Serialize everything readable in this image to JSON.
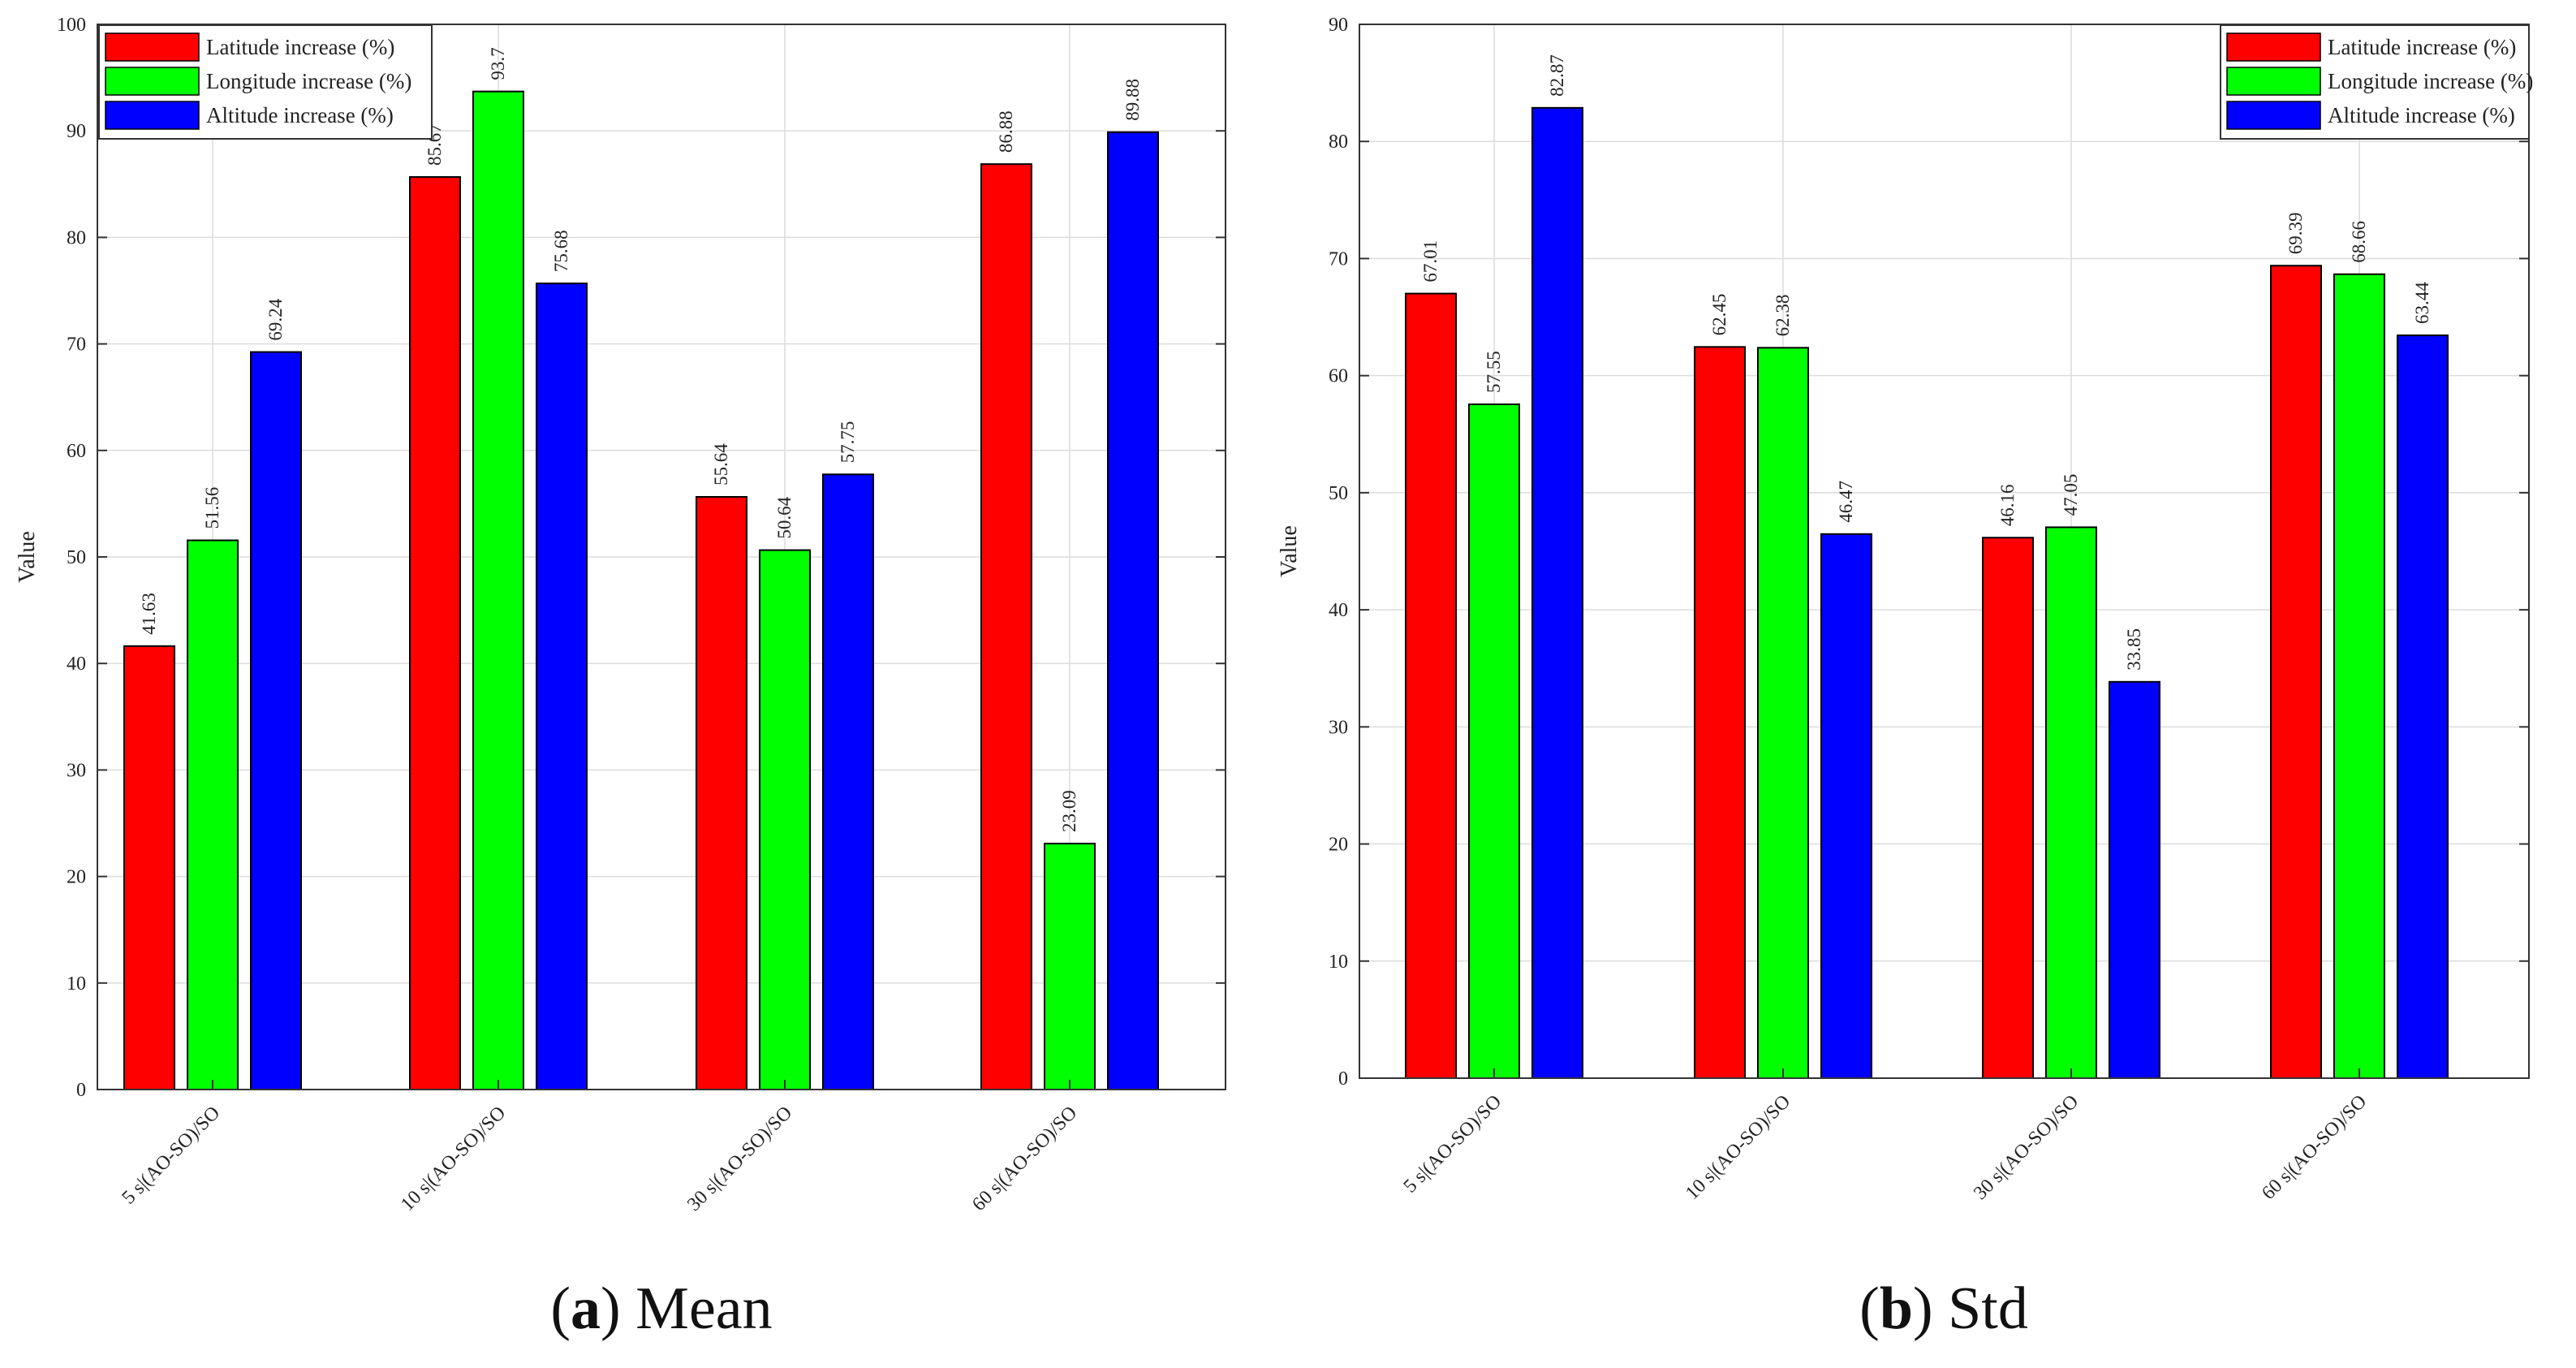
{
  "colors": {
    "lat": "#ff0000",
    "lon": "#00ff00",
    "alt": "#0000ff"
  },
  "chart_data": [
    {
      "type": "bar",
      "caption_letter": "a",
      "caption_text": " Mean",
      "ylabel": "Value",
      "ylim": [
        0,
        100
      ],
      "yticks": [
        0,
        10,
        20,
        30,
        40,
        50,
        60,
        70,
        80,
        90,
        100
      ],
      "categories": [
        "5 s|(AO-SO)/SO",
        "10 s|(AO-SO)/SO",
        "30 s|(AO-SO)/SO",
        "60 s|(AO-SO)/SO"
      ],
      "series": [
        {
          "name": "Latitude increase (%)",
          "values": [
            41.63,
            85.67,
            55.64,
            86.88
          ],
          "labels": [
            "41.63",
            "85.67",
            "55.64",
            "86.88"
          ]
        },
        {
          "name": "Longitude increase (%)",
          "values": [
            51.56,
            93.7,
            50.64,
            23.09
          ],
          "labels": [
            "51.56",
            "93.7",
            "50.64",
            "23.09"
          ]
        },
        {
          "name": "Altitude increase (%)",
          "values": [
            69.24,
            75.68,
            57.75,
            89.88
          ],
          "labels": [
            "69.24",
            "75.68",
            "57.75",
            "89.88"
          ]
        }
      ],
      "legend": "top-left",
      "grid": true
    },
    {
      "type": "bar",
      "caption_letter": "b",
      "caption_text": " Std",
      "ylabel": "Value",
      "ylim": [
        0,
        90
      ],
      "yticks": [
        0,
        10,
        20,
        30,
        40,
        50,
        60,
        70,
        80,
        90
      ],
      "categories": [
        "5 s|(AO-SO)/SO",
        "10 s|(AO-SO)/SO",
        "30 s|(AO-SO)/SO",
        "60 s|(AO-SO)/SO"
      ],
      "series": [
        {
          "name": "Latitude increase (%)",
          "values": [
            67.01,
            62.45,
            46.16,
            69.39
          ],
          "labels": [
            "67.01",
            "62.45",
            "46.16",
            "69.39"
          ]
        },
        {
          "name": "Longitude increase (%)",
          "values": [
            57.55,
            62.38,
            47.05,
            68.66
          ],
          "labels": [
            "57.55",
            "62.38",
            "47.05",
            "68.66"
          ]
        },
        {
          "name": "Altitude increase (%)",
          "values": [
            82.87,
            46.47,
            33.85,
            63.44
          ],
          "labels": [
            "82.87",
            "46.47",
            "33.85",
            "63.44"
          ]
        }
      ],
      "legend": "top-right",
      "grid": true
    }
  ]
}
